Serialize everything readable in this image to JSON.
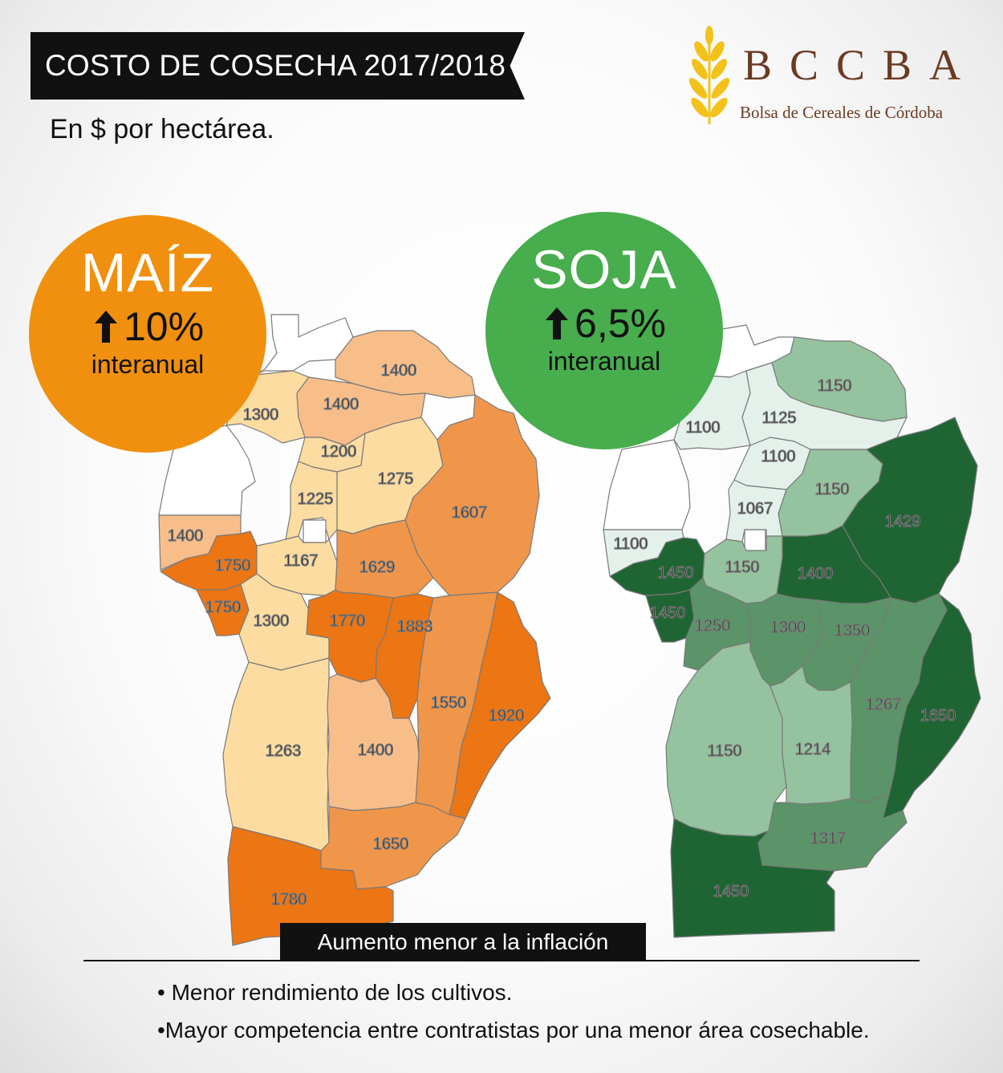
{
  "header": {
    "title": "COSTO DE COSECHA 2017/2018",
    "subtitle": "En $ por hectárea."
  },
  "logo": {
    "acronym": "BCCBA",
    "name": "Bolsa de Cereales de Córdoba",
    "color": "#6b3a22",
    "wheat_color": "#f2c21a"
  },
  "crops": {
    "maiz": {
      "name": "MAÍZ",
      "change": "10%",
      "change_label": "interanual",
      "color": "#f0900e"
    },
    "soja": {
      "name": "SOJA",
      "change": "6,5%",
      "change_label": "interanual",
      "color": "#47ad4d"
    }
  },
  "maps": {
    "maiz": {
      "palette": {
        "light": "#fcdca0",
        "mid_light": "#f8be8a",
        "mid": "#f0964a",
        "dark": "#ec7514",
        "none": "#ffffff"
      },
      "values": [
        "1400",
        "1300",
        "1400",
        "1200",
        "1275",
        "1225",
        "1607",
        "1400",
        "1750",
        "1167",
        "1629",
        "1750",
        "1300",
        "1770",
        "1883",
        "1550",
        "1920",
        "1263",
        "1400",
        "1650",
        "1780"
      ]
    },
    "soja": {
      "palette": {
        "lightest": "#e3f1ea",
        "light": "#95c29f",
        "mid": "#5a9468",
        "dark": "#1f6534",
        "none": "#ffffff"
      },
      "values": [
        "1150",
        "1100",
        "1125",
        "1100",
        "1150",
        "1067",
        "1429",
        "1100",
        "1450",
        "1150",
        "1400",
        "1450",
        "1250",
        "1300",
        "1350",
        "1267",
        "1650",
        "1150",
        "1214",
        "1317",
        "1450"
      ]
    }
  },
  "footer": {
    "banner": "Aumento menor a la inflación",
    "bullets": [
      "• Menor rendimiento de los cultivos.",
      "•Mayor competencia entre contratistas por una menor área cosechable."
    ]
  }
}
